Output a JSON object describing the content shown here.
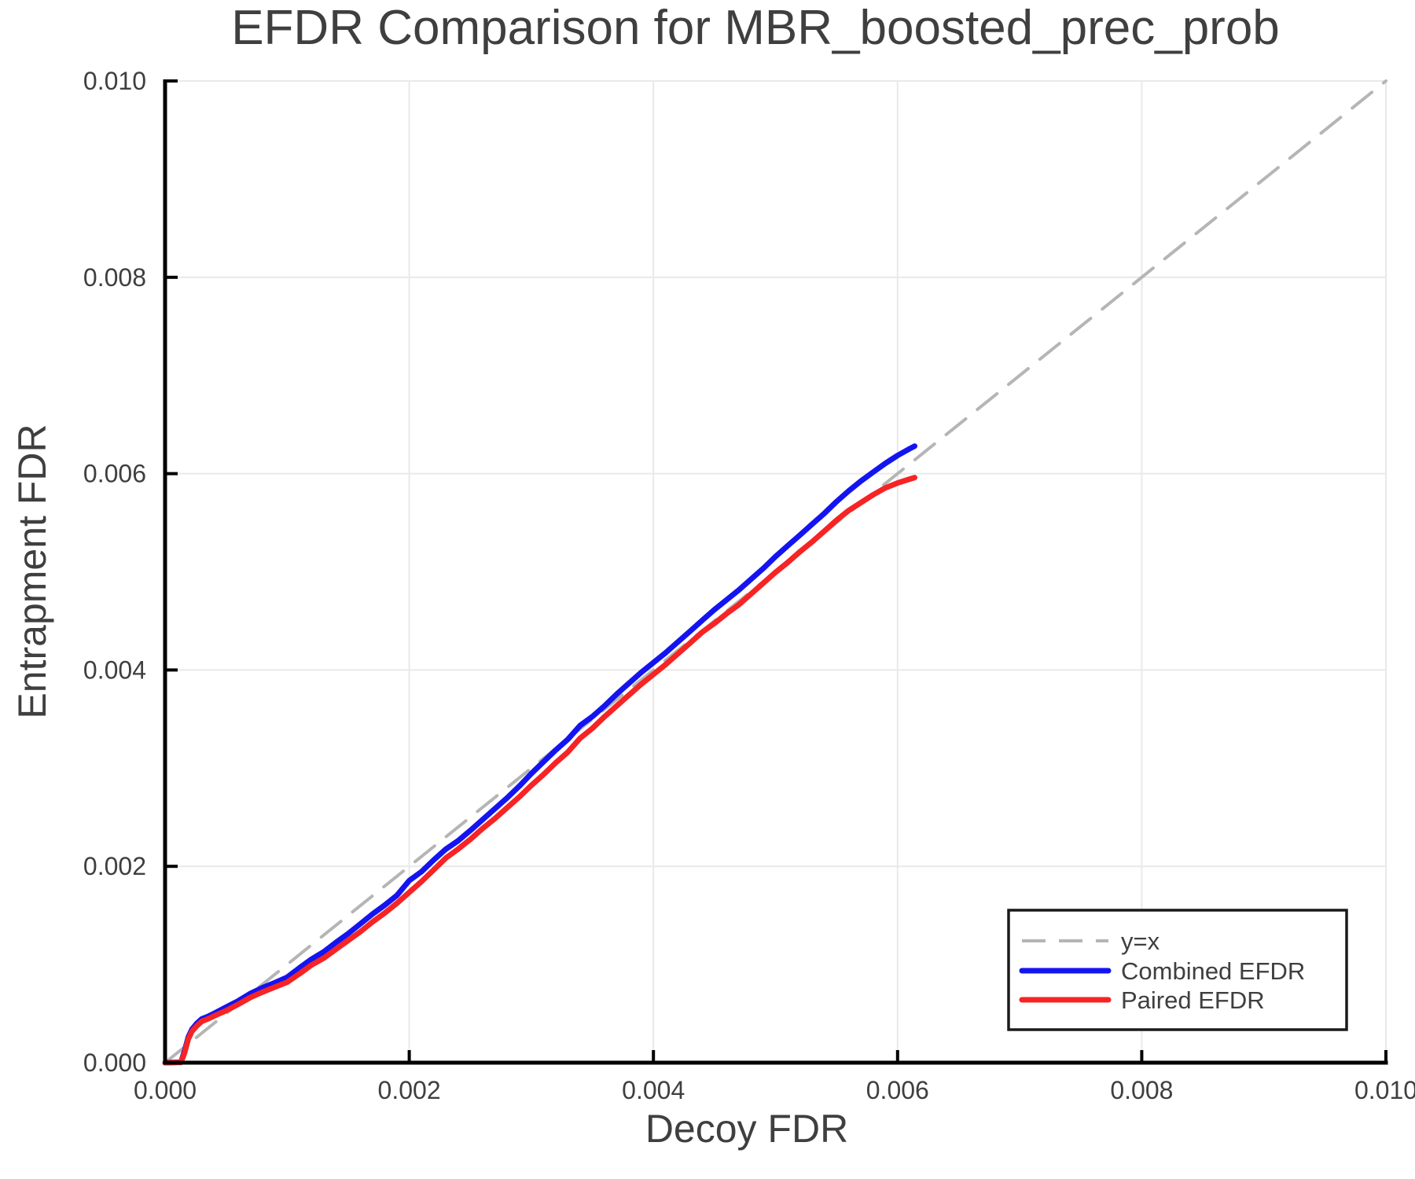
{
  "title": "EFDR Comparison for MBR_boosted_prec_prob",
  "axes": {
    "x": {
      "label": "Decoy FDR",
      "ticks": [
        "0.000",
        "0.002",
        "0.004",
        "0.006",
        "0.008",
        "0.010"
      ]
    },
    "y": {
      "label": "Entrapment FDR",
      "ticks": [
        "0.000",
        "0.002",
        "0.004",
        "0.006",
        "0.008",
        "0.010"
      ]
    }
  },
  "colors": {
    "background": "#ffffff",
    "grid": "#e9e9e9",
    "spine": "#000000",
    "text": "#3f3f3f",
    "identity_line": "#b5b5b5",
    "combined_line": "#1414f0",
    "paired_line": "#f62424",
    "legend_border": "#1a1a1a"
  },
  "legend": {
    "items": [
      "y=x",
      "Combined EFDR",
      "Paired EFDR"
    ],
    "position": "lower right"
  },
  "chart_data": {
    "type": "line",
    "title": "EFDR Comparison for MBR_boosted_prec_prob",
    "xlabel": "Decoy FDR",
    "ylabel": "Entrapment FDR",
    "xlim": [
      0,
      0.01
    ],
    "ylim": [
      0,
      0.01
    ],
    "grid": true,
    "legend_position": "lower right",
    "series": [
      {
        "name": "y=x",
        "style": "dashed",
        "color": "#b5b5b5",
        "x": [
          0,
          0.01
        ],
        "y": [
          0,
          0.01
        ]
      },
      {
        "name": "Combined EFDR",
        "style": "solid",
        "color": "#1414f0",
        "x": [
          0,
          0.00013,
          0.00016,
          0.00019,
          0.00022,
          0.00026,
          0.0003,
          0.00035,
          0.0004,
          0.0005,
          0.0006,
          0.0007,
          0.0008,
          0.0009,
          0.001,
          0.0011,
          0.0012,
          0.0013,
          0.0014,
          0.0015,
          0.0016,
          0.0017,
          0.0018,
          0.0019,
          0.002,
          0.0021,
          0.0022,
          0.0023,
          0.0024,
          0.0025,
          0.0026,
          0.0027,
          0.0028,
          0.0029,
          0.003,
          0.0031,
          0.0032,
          0.0033,
          0.0034,
          0.0035,
          0.0036,
          0.0037,
          0.0038,
          0.0039,
          0.004,
          0.0041,
          0.0042,
          0.0043,
          0.0044,
          0.0045,
          0.0046,
          0.0047,
          0.0048,
          0.0049,
          0.005,
          0.0051,
          0.0052,
          0.0053,
          0.0054,
          0.0055,
          0.0056,
          0.0057,
          0.0058,
          0.0059,
          0.006,
          0.0061,
          0.00614
        ],
        "y": [
          0,
          5e-06,
          0.00012,
          0.00026,
          0.00034,
          0.0004,
          0.000445,
          0.00047,
          0.0005,
          0.000565,
          0.00063,
          0.000705,
          0.000765,
          0.000815,
          0.00087,
          0.000965,
          0.001055,
          0.00113,
          0.001225,
          0.001315,
          0.001415,
          0.001515,
          0.001605,
          0.001705,
          0.001855,
          0.001945,
          0.002065,
          0.002175,
          0.00226,
          0.002365,
          0.002475,
          0.002585,
          0.002695,
          0.002815,
          0.002945,
          0.003065,
          0.003185,
          0.003295,
          0.003435,
          0.003525,
          0.003635,
          0.003755,
          0.003865,
          0.003975,
          0.004075,
          0.004175,
          0.004285,
          0.004395,
          0.004505,
          0.004615,
          0.004715,
          0.004815,
          0.004925,
          0.005035,
          0.005155,
          0.005265,
          0.005375,
          0.005485,
          0.005595,
          0.005715,
          0.005825,
          0.005925,
          0.006015,
          0.006105,
          0.006185,
          0.006255,
          0.00628
        ]
      },
      {
        "name": "Paired EFDR",
        "style": "solid",
        "color": "#f62424",
        "x": [
          0,
          0.00013,
          0.00016,
          0.00019,
          0.00022,
          0.00026,
          0.0003,
          0.00035,
          0.0004,
          0.0005,
          0.0006,
          0.0007,
          0.0008,
          0.0009,
          0.001,
          0.0011,
          0.0012,
          0.0013,
          0.0014,
          0.0015,
          0.0016,
          0.0017,
          0.0018,
          0.0019,
          0.002,
          0.0021,
          0.0022,
          0.0023,
          0.0024,
          0.0025,
          0.0026,
          0.0027,
          0.0028,
          0.0029,
          0.003,
          0.0031,
          0.0032,
          0.0033,
          0.0034,
          0.0035,
          0.0036,
          0.0037,
          0.0038,
          0.0039,
          0.004,
          0.0041,
          0.0042,
          0.0043,
          0.0044,
          0.0045,
          0.0046,
          0.0047,
          0.0048,
          0.0049,
          0.005,
          0.0051,
          0.0052,
          0.0053,
          0.0054,
          0.0055,
          0.0056,
          0.0057,
          0.0058,
          0.0059,
          0.006,
          0.0061,
          0.00614
        ],
        "y": [
          0,
          3e-06,
          0.0001,
          0.00024,
          0.00032,
          0.000375,
          0.00042,
          0.000445,
          0.000475,
          0.00053,
          0.000595,
          0.000665,
          0.00072,
          0.00077,
          0.00082,
          0.000905,
          0.000995,
          0.001065,
          0.001155,
          0.001245,
          0.001335,
          0.001435,
          0.001525,
          0.001625,
          0.001735,
          0.001845,
          0.001965,
          0.002085,
          0.002175,
          0.002275,
          0.002385,
          0.002485,
          0.002595,
          0.002705,
          0.002825,
          0.002935,
          0.003055,
          0.003165,
          0.003305,
          0.003405,
          0.003525,
          0.003635,
          0.003745,
          0.003855,
          0.003955,
          0.004055,
          0.004165,
          0.004275,
          0.004385,
          0.004475,
          0.004575,
          0.004665,
          0.004775,
          0.004885,
          0.004995,
          0.005095,
          0.005205,
          0.005305,
          0.005415,
          0.005525,
          0.005625,
          0.005705,
          0.005785,
          0.005855,
          0.005905,
          0.005945,
          0.00596
        ]
      }
    ]
  }
}
